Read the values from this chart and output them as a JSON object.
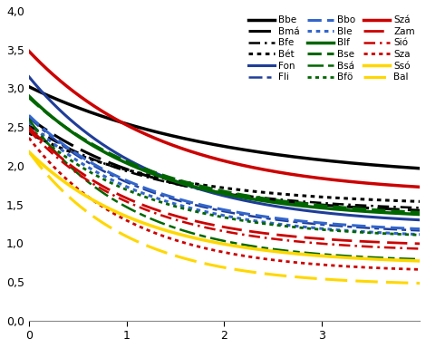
{
  "title": "",
  "xlabel": "",
  "ylabel": "",
  "xlim": [
    0,
    4.0
  ],
  "ylim": [
    0.0,
    4.0
  ],
  "yticks": [
    0.0,
    0.5,
    1.0,
    1.5,
    2.0,
    2.5,
    3.0,
    3.5,
    4.0
  ],
  "xticks": [
    0,
    1,
    2,
    3
  ],
  "series": [
    {
      "label": "Bbe",
      "color": "#000000",
      "linestyle": "solid",
      "linewidth": 2.5,
      "y0": 3.02,
      "y_end": 1.8,
      "k": 0.5
    },
    {
      "label": "Bmá",
      "color": "#000000",
      "linestyle": "longdash",
      "linewidth": 2.2,
      "y0": 2.62,
      "y_end": 1.36,
      "k": 0.75
    },
    {
      "label": "Bfe",
      "color": "#000000",
      "linestyle": "dashdot2",
      "linewidth": 1.8,
      "y0": 2.52,
      "y_end": 1.4,
      "k": 0.75
    },
    {
      "label": "Bét",
      "color": "#000000",
      "linestyle": "dotted",
      "linewidth": 2.2,
      "y0": 2.42,
      "y_end": 1.48,
      "k": 0.7
    },
    {
      "label": "Fon",
      "color": "#1F3D99",
      "linestyle": "solid",
      "linewidth": 2.2,
      "y0": 3.15,
      "y_end": 1.22,
      "k": 0.8
    },
    {
      "label": "Fli",
      "color": "#1F3D99",
      "linestyle": "dashdot",
      "linewidth": 1.8,
      "y0": 2.63,
      "y_end": 1.1,
      "k": 0.8
    },
    {
      "label": "Bbo",
      "color": "#3366CC",
      "linestyle": "dashed",
      "linewidth": 2.2,
      "y0": 2.65,
      "y_end": 1.12,
      "k": 0.8
    },
    {
      "label": "Ble",
      "color": "#3366CC",
      "linestyle": "dotted",
      "linewidth": 2.2,
      "y0": 2.56,
      "y_end": 1.05,
      "k": 0.8
    },
    {
      "label": "Blf",
      "color": "#006600",
      "linestyle": "solid",
      "linewidth": 2.5,
      "y0": 2.9,
      "y_end": 1.3,
      "k": 0.78
    },
    {
      "label": "Bse",
      "color": "#006600",
      "linestyle": "dashed",
      "linewidth": 2.2,
      "y0": 2.88,
      "y_end": 1.32,
      "k": 0.75
    },
    {
      "label": "Bsá",
      "color": "#006600",
      "linestyle": "longdash2",
      "linewidth": 1.8,
      "y0": 2.6,
      "y_end": 0.75,
      "k": 0.95
    },
    {
      "label": "Bfö",
      "color": "#006600",
      "linestyle": "dotted",
      "linewidth": 2.0,
      "y0": 2.5,
      "y_end": 1.05,
      "k": 0.82
    },
    {
      "label": "Szá",
      "color": "#CC0000",
      "linestyle": "solid",
      "linewidth": 2.5,
      "y0": 3.48,
      "y_end": 1.62,
      "k": 0.72
    },
    {
      "label": "Zam",
      "color": "#CC0000",
      "linestyle": "longdash",
      "linewidth": 2.0,
      "y0": 2.5,
      "y_end": 0.95,
      "k": 0.9
    },
    {
      "label": "Sió",
      "color": "#CC0000",
      "linestyle": "dashdot2",
      "linewidth": 1.8,
      "y0": 2.46,
      "y_end": 0.88,
      "k": 0.88
    },
    {
      "label": "Sza",
      "color": "#CC0000",
      "linestyle": "dotted",
      "linewidth": 2.0,
      "y0": 2.36,
      "y_end": 0.62,
      "k": 0.95
    },
    {
      "label": "Ssó",
      "color": "#FFD700",
      "linestyle": "solid",
      "linewidth": 2.5,
      "y0": 2.18,
      "y_end": 0.72,
      "k": 0.85
    },
    {
      "label": "Bal",
      "color": "#FFD700",
      "linestyle": "longdash",
      "linewidth": 2.2,
      "y0": 2.18,
      "y_end": 0.45,
      "k": 1.0
    }
  ],
  "legend_order": [
    [
      "Bbe",
      "Bmá",
      "Bfe"
    ],
    [
      "Bét",
      "Fon",
      "Fli"
    ],
    [
      "Bbo",
      "Ble",
      "Blf"
    ],
    [
      "Bse",
      "Bsá",
      "Bfö"
    ],
    [
      "Szá",
      "Zam",
      "Sió"
    ],
    [
      "Sza",
      "Ssó",
      "Bal"
    ]
  ]
}
